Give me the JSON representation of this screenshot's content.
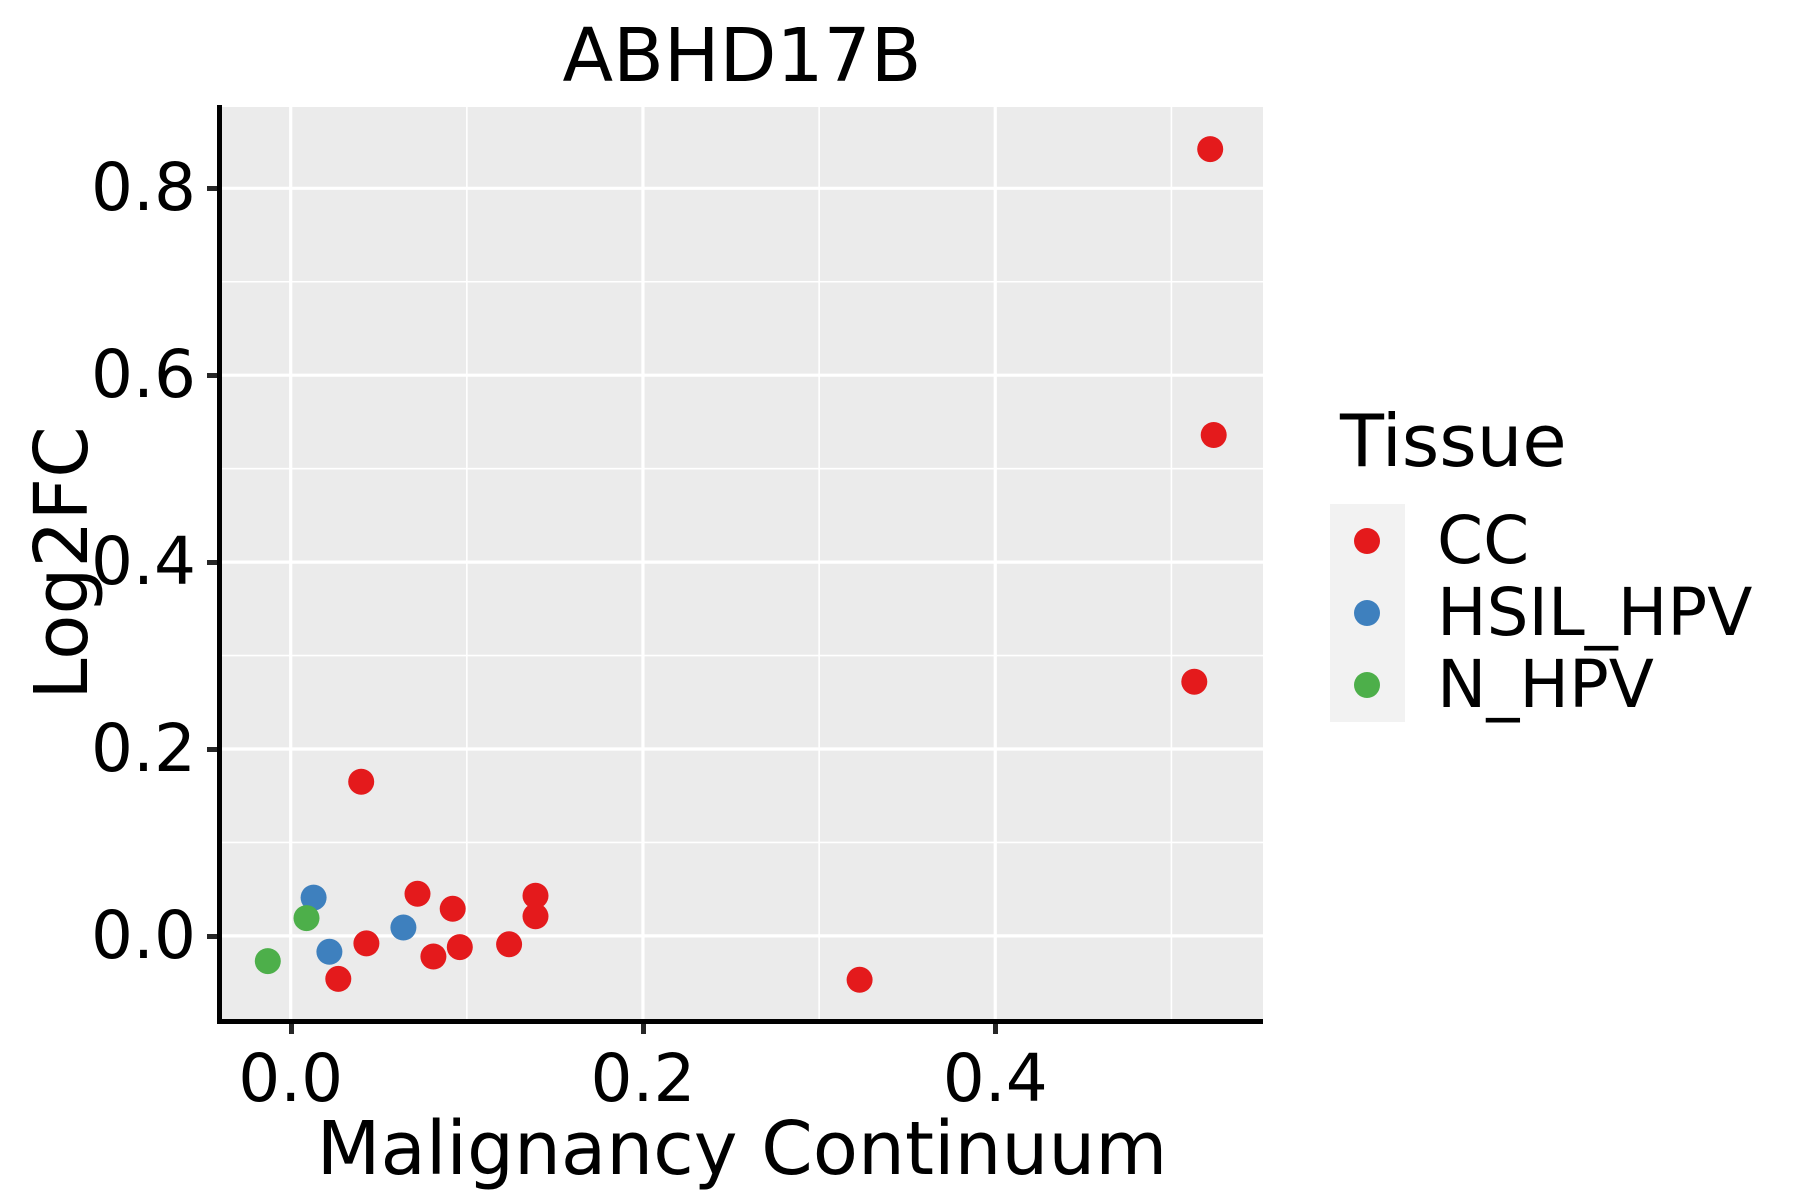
{
  "title": "ABHD17B",
  "axes": {
    "x_label": "Malignancy Continuum",
    "y_label": "Log2FC"
  },
  "legend": {
    "title": "Tissue",
    "entries": [
      {
        "label": "CC",
        "color": "#E41A1C"
      },
      {
        "label": "HSIL_HPV",
        "color": "#3E80BE"
      },
      {
        "label": "N_HPV",
        "color": "#4DAF4A"
      }
    ]
  },
  "colors": {
    "panel_background": "#EBEBEB",
    "gridline": "#FFFFFF",
    "axis_line": "#000000",
    "cc_red": "#E41A1C",
    "hsil_blue": "#3E80BE",
    "nhpv_green": "#4DAF4A"
  },
  "chart_data": {
    "type": "scatter",
    "title": "ABHD17B",
    "xlabel": "Malignancy Continuum",
    "ylabel": "Log2FC",
    "xlim": [
      -0.039,
      0.552
    ],
    "ylim": [
      -0.09,
      0.887
    ],
    "x_ticks": [
      0.0,
      0.2,
      0.4
    ],
    "y_ticks": [
      0.0,
      0.2,
      0.4,
      0.6,
      0.8
    ],
    "x_tick_labels": [
      "0.0",
      "0.2",
      "0.4"
    ],
    "y_tick_labels": [
      "0.0",
      "0.2",
      "0.4",
      "0.6",
      "0.8"
    ],
    "x_minor_ticks": [
      0.1,
      0.3,
      0.5
    ],
    "y_minor_ticks": [
      0.1,
      0.3,
      0.5,
      0.7
    ],
    "grid": true,
    "legend_position": "right",
    "legend_title": "Tissue",
    "point_radius_px": 13,
    "series": [
      {
        "name": "CC",
        "color": "#E41A1C",
        "points": [
          [
            0.04,
            0.165
          ],
          [
            0.027,
            -0.046
          ],
          [
            0.043,
            -0.008
          ],
          [
            0.072,
            0.045
          ],
          [
            0.092,
            0.029
          ],
          [
            0.081,
            -0.022
          ],
          [
            0.096,
            -0.012
          ],
          [
            0.124,
            -0.009
          ],
          [
            0.139,
            0.043
          ],
          [
            0.139,
            0.021
          ],
          [
            0.323,
            -0.047
          ],
          [
            0.522,
            0.842
          ],
          [
            0.524,
            0.536
          ],
          [
            0.513,
            0.272
          ]
        ]
      },
      {
        "name": "HSIL_HPV",
        "color": "#3E80BE",
        "points": [
          [
            0.013,
            0.041
          ],
          [
            0.022,
            -0.017
          ],
          [
            0.064,
            0.009
          ]
        ]
      },
      {
        "name": "N_HPV",
        "color": "#4DAF4A",
        "points": [
          [
            0.009,
            0.019
          ],
          [
            -0.013,
            -0.027
          ]
        ]
      }
    ]
  }
}
